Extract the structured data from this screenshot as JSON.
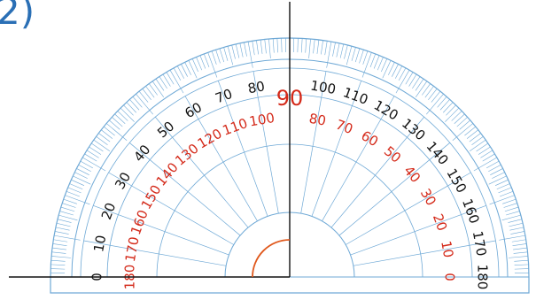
{
  "question_number": "2)",
  "protractor": {
    "center_label": "90",
    "outer_scale": [
      "0",
      "10",
      "20",
      "30",
      "40",
      "50",
      "60",
      "70",
      "80",
      "90",
      "100",
      "110",
      "120",
      "130",
      "140",
      "150",
      "160",
      "170",
      "180"
    ],
    "inner_scale": [
      "180",
      "170",
      "160",
      "150",
      "140",
      "130",
      "120",
      "110",
      "100",
      "90",
      "80",
      "70",
      "60",
      "50",
      "40",
      "30",
      "20",
      "10",
      "0"
    ],
    "colors": {
      "body_stroke": "#6fa9d6",
      "outer_numbers": "#111111",
      "inner_numbers": "#d42a1a",
      "center_label": "#d42a1a",
      "angle_arc": "#e0581c",
      "baseline": "#111111",
      "vertical_ray": "#111111"
    }
  },
  "figure": {
    "measured_angle_degrees": 90,
    "rays": [
      "horizontal-left",
      "vertical-up"
    ]
  }
}
